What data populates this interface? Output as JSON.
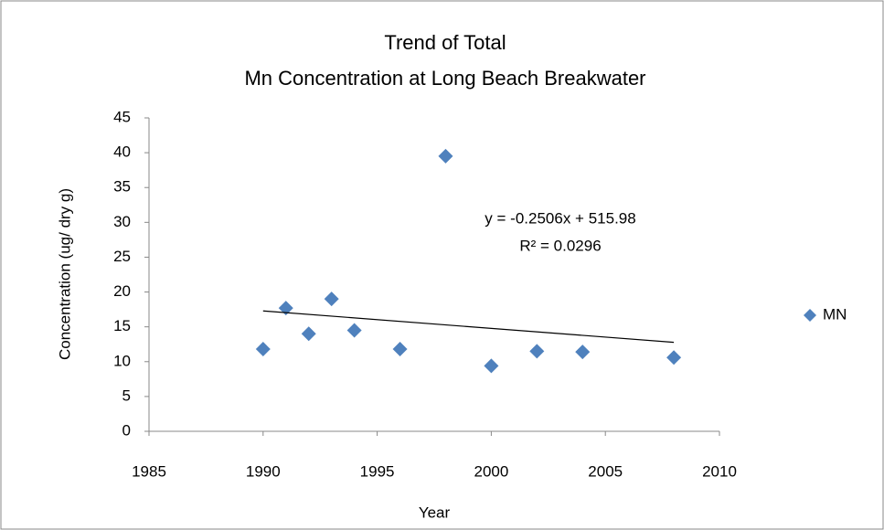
{
  "chart_data": {
    "type": "scatter",
    "title": [
      "Trend of Total",
      "Mn Concentration at Long Beach Breakwater"
    ],
    "x_label": "Year",
    "y_label": "Concentration (ug/ dry g)",
    "series": [
      {
        "name": "MN",
        "color": "#4f81bd",
        "x": [
          1990,
          1991,
          1992,
          1993,
          1994,
          1996,
          1998,
          2000,
          2002,
          2004,
          2008
        ],
        "values": [
          11.8,
          17.7,
          14,
          19,
          14.5,
          11.8,
          39.5,
          9.4,
          11.5,
          11.4,
          10.6
        ]
      }
    ],
    "trendline": {
      "slope": -0.2506,
      "intercept": 515.98,
      "equation": "y = -0.2506x + 515.98",
      "r2_label": "R² = 0.0296"
    },
    "xlim": [
      1985,
      2010
    ],
    "xticks": [
      1985,
      1990,
      1995,
      2000,
      2005,
      2010
    ],
    "ylim": [
      0,
      45
    ],
    "yticks": [
      0,
      5,
      10,
      15,
      20,
      25,
      30,
      35,
      40,
      45
    ],
    "grid": false,
    "legend": "right"
  }
}
